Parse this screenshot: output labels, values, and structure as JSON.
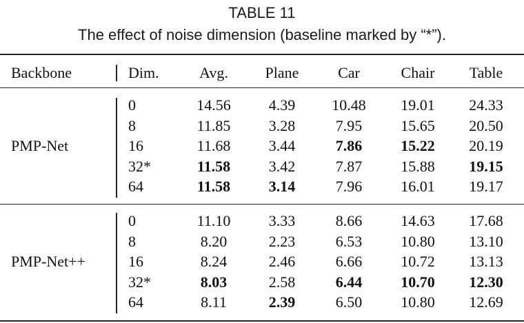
{
  "table": {
    "caption_line1": "TABLE 11",
    "caption_line2": "The effect of noise dimension (baseline marked by “*”).",
    "headers": [
      "Backbone",
      "Dim.",
      "Avg.",
      "Plane",
      "Car",
      "Chair",
      "Table"
    ],
    "groups": [
      {
        "backbone": "PMP-Net",
        "rows": [
          {
            "dim": "0",
            "values": [
              "14.56",
              "4.39",
              "10.48",
              "19.01",
              "24.33"
            ],
            "bold": [
              false,
              false,
              false,
              false,
              false
            ]
          },
          {
            "dim": "8",
            "values": [
              "11.85",
              "3.28",
              "7.95",
              "15.65",
              "20.50"
            ],
            "bold": [
              false,
              false,
              false,
              false,
              false
            ]
          },
          {
            "dim": "16",
            "values": [
              "11.68",
              "3.44",
              "7.86",
              "15.22",
              "20.19"
            ],
            "bold": [
              false,
              false,
              true,
              true,
              false
            ]
          },
          {
            "dim": "32*",
            "values": [
              "11.58",
              "3.42",
              "7.87",
              "15.88",
              "19.15"
            ],
            "bold": [
              true,
              false,
              false,
              false,
              true
            ]
          },
          {
            "dim": "64",
            "values": [
              "11.58",
              "3.14",
              "7.96",
              "16.01",
              "19.17"
            ],
            "bold": [
              true,
              true,
              false,
              false,
              false
            ]
          }
        ]
      },
      {
        "backbone": "PMP-Net++",
        "rows": [
          {
            "dim": "0",
            "values": [
              "11.10",
              "3.33",
              "8.66",
              "14.63",
              "17.68"
            ],
            "bold": [
              false,
              false,
              false,
              false,
              false
            ]
          },
          {
            "dim": "8",
            "values": [
              "8.20",
              "2.23",
              "6.53",
              "10.80",
              "13.10"
            ],
            "bold": [
              false,
              false,
              false,
              false,
              false
            ]
          },
          {
            "dim": "16",
            "values": [
              "8.24",
              "2.46",
              "6.66",
              "10.72",
              "13.13"
            ],
            "bold": [
              false,
              false,
              false,
              false,
              false
            ]
          },
          {
            "dim": "32*",
            "values": [
              "8.03",
              "2.58",
              "6.44",
              "10.70",
              "12.30"
            ],
            "bold": [
              true,
              false,
              true,
              true,
              true
            ]
          },
          {
            "dim": "64",
            "values": [
              "8.11",
              "2.39",
              "6.50",
              "10.80",
              "12.69"
            ],
            "bold": [
              false,
              true,
              false,
              false,
              false
            ]
          }
        ]
      }
    ]
  }
}
